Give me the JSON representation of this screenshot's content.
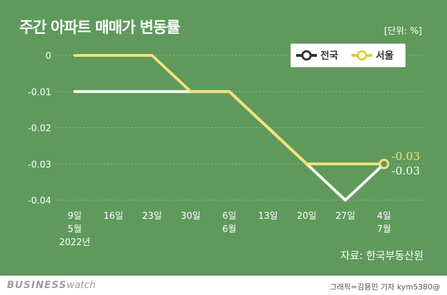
{
  "title": "주간 아파트 매매가 변동률",
  "unit": "[단위: %]",
  "source": "자료: 한국부동산원",
  "footer": {
    "brand_bold": "BUSINESS",
    "brand_light": "watch",
    "credit": "그래픽=김용민 기자 kym5380@"
  },
  "chart_data": {
    "type": "line",
    "x": [
      [
        "9일",
        "5월",
        "2022년"
      ],
      [
        "16일"
      ],
      [
        "23일"
      ],
      [
        "30일"
      ],
      [
        "6일",
        "6월"
      ],
      [
        "13일"
      ],
      [
        "20일"
      ],
      [
        "27일"
      ],
      [
        "4일",
        "7월"
      ]
    ],
    "yticks": [
      0,
      -0.01,
      -0.02,
      -0.03,
      -0.04
    ],
    "ytick_labels": [
      "0",
      "-0.01",
      "-0.02",
      "-0.03",
      "-0.04"
    ],
    "ylim": [
      -0.04,
      0
    ],
    "grid": true,
    "legend_position": "top-right",
    "series": [
      {
        "name": "전국",
        "color": "#ffffff",
        "values": [
          -0.01,
          -0.01,
          -0.01,
          -0.01,
          -0.01,
          -0.02,
          -0.03,
          -0.04,
          -0.03
        ],
        "end_label": "-0.03"
      },
      {
        "name": "서울",
        "color": "#f1e27a",
        "values": [
          0,
          0,
          0,
          -0.01,
          -0.01,
          -0.02,
          -0.03,
          -0.03,
          -0.03
        ],
        "end_label": "-0.03"
      }
    ]
  }
}
